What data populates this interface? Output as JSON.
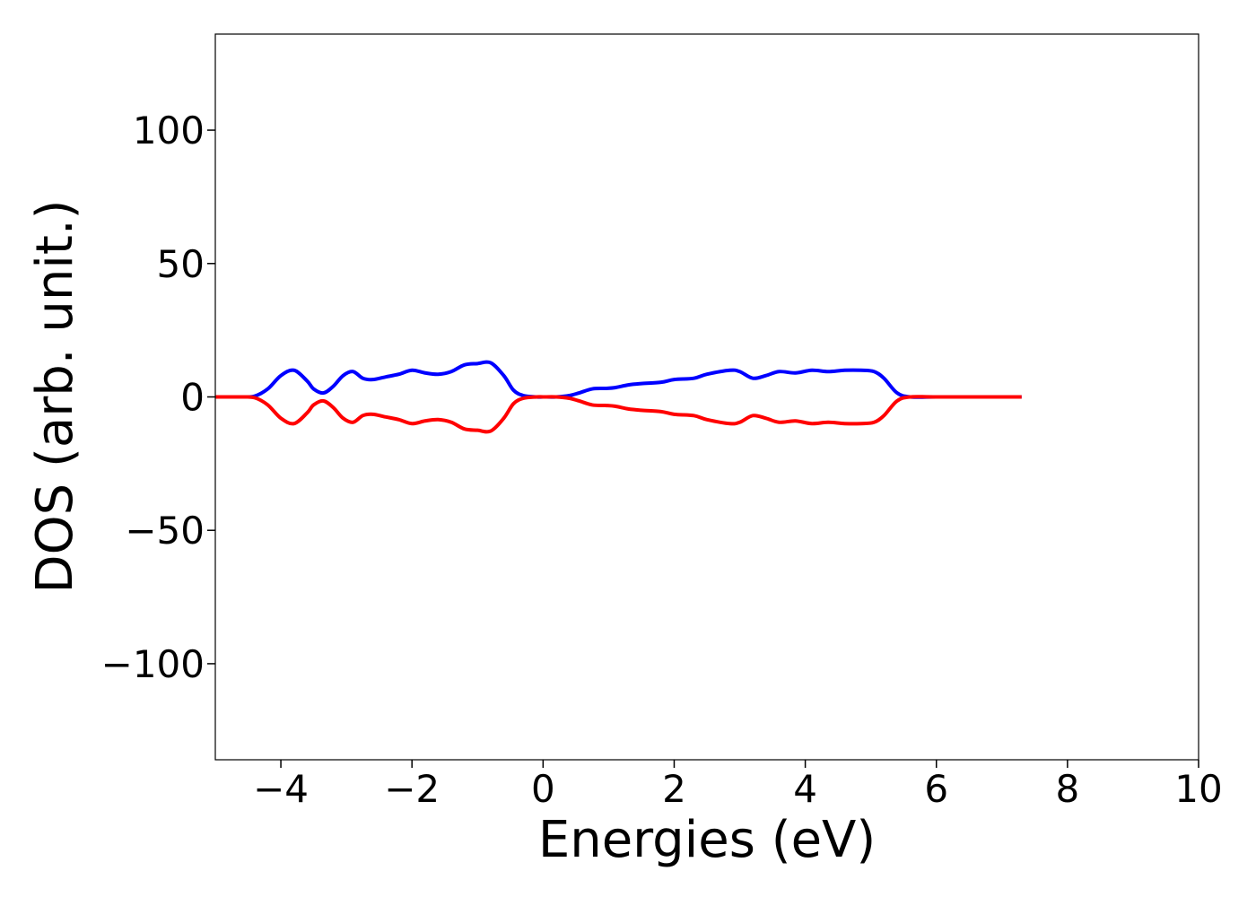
{
  "chart_data": {
    "type": "line",
    "xlabel": "Energies (eV)",
    "ylabel": "DOS (arb. unit.)",
    "xlim": [
      -5,
      10
    ],
    "ylim": [
      -136,
      136
    ],
    "xticks": [
      -4,
      -2,
      0,
      2,
      4,
      6,
      8,
      10
    ],
    "xtick_labels": [
      "−4",
      "−2",
      "0",
      "2",
      "4",
      "6",
      "8",
      "10"
    ],
    "yticks": [
      -100,
      -50,
      0,
      50,
      100
    ],
    "ytick_labels": [
      "−100",
      "−50",
      "0",
      "50",
      "100"
    ],
    "grid": false,
    "legend": false,
    "series": [
      {
        "color": "#0000ff",
        "x": [
          -5.0,
          -4.6,
          -4.4,
          -4.2,
          -4.0,
          -3.8,
          -3.6,
          -3.5,
          -3.35,
          -3.2,
          -3.05,
          -2.9,
          -2.75,
          -2.6,
          -2.4,
          -2.2,
          -2.0,
          -1.8,
          -1.6,
          -1.4,
          -1.2,
          -1.0,
          -0.8,
          -0.6,
          -0.45,
          -0.3,
          -0.1,
          0.0,
          0.2,
          0.4,
          0.55,
          0.75,
          0.95,
          1.1,
          1.3,
          1.5,
          1.8,
          2.0,
          2.3,
          2.5,
          2.85,
          3.0,
          3.2,
          3.4,
          3.6,
          3.85,
          4.1,
          4.35,
          4.6,
          4.85,
          5.05,
          5.2,
          5.4,
          5.6,
          6.0,
          7.0,
          7.3
        ],
        "y": [
          0,
          0,
          0.3,
          3,
          8,
          10,
          6,
          3,
          1.5,
          4,
          8,
          9.5,
          7,
          6.5,
          7.5,
          8.5,
          10,
          9,
          8.5,
          9.5,
          12,
          12.5,
          12.8,
          8,
          2.5,
          0.5,
          0,
          0,
          0,
          0.5,
          1.5,
          3,
          3.2,
          3.5,
          4.5,
          5,
          5.5,
          6.5,
          7,
          8.5,
          10,
          9.5,
          7,
          8,
          9.5,
          9,
          10,
          9.5,
          10,
          10,
          9.5,
          7,
          1.5,
          0,
          0,
          0,
          0
        ]
      },
      {
        "color": "#ff0000",
        "x": [
          -5.0,
          -4.6,
          -4.4,
          -4.2,
          -4.0,
          -3.8,
          -3.6,
          -3.5,
          -3.35,
          -3.2,
          -3.05,
          -2.9,
          -2.75,
          -2.6,
          -2.4,
          -2.2,
          -2.0,
          -1.8,
          -1.6,
          -1.4,
          -1.2,
          -1.0,
          -0.8,
          -0.6,
          -0.45,
          -0.3,
          -0.1,
          0.0,
          0.2,
          0.4,
          0.55,
          0.75,
          0.95,
          1.1,
          1.3,
          1.5,
          1.8,
          2.0,
          2.3,
          2.5,
          2.85,
          3.0,
          3.2,
          3.4,
          3.6,
          3.85,
          4.1,
          4.35,
          4.6,
          4.85,
          5.05,
          5.2,
          5.4,
          5.6,
          6.0,
          7.0,
          7.3
        ],
        "y": [
          0,
          0,
          -0.3,
          -3,
          -8,
          -10,
          -6,
          -3,
          -1.5,
          -4,
          -8,
          -9.5,
          -7,
          -6.5,
          -7.5,
          -8.5,
          -10,
          -9,
          -8.5,
          -9.5,
          -12,
          -12.5,
          -12.8,
          -8,
          -2.5,
          -0.5,
          0,
          0,
          0,
          -0.5,
          -1.5,
          -3,
          -3.2,
          -3.5,
          -4.5,
          -5,
          -5.5,
          -6.5,
          -7,
          -8.5,
          -10,
          -9.5,
          -7,
          -8,
          -9.5,
          -9,
          -10,
          -9.5,
          -10,
          -10,
          -9.5,
          -7,
          -1.5,
          0,
          0,
          0,
          0
        ]
      }
    ]
  }
}
